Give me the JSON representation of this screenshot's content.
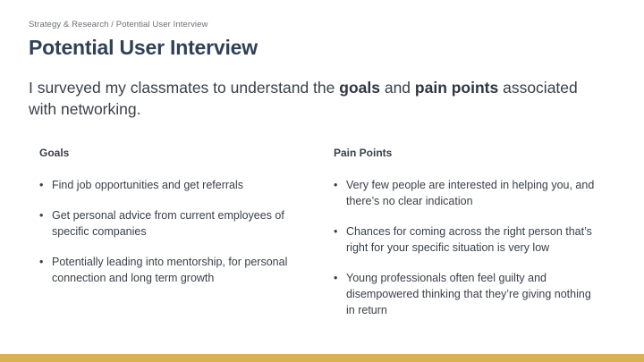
{
  "breadcrumb": "Strategy & Research / Potential User Interview",
  "title": "Potential User Interview",
  "intro": {
    "before": "I surveyed my classmates to understand the ",
    "goals_word": "goals",
    "middle": " and ",
    "pain_word": "pain points",
    "after": " associated with networking."
  },
  "goals": {
    "heading": "Goals",
    "items": [
      "Find job opportunities and get referrals",
      "Get personal advice from current employees of specific companies",
      "Potentially leading into mentorship, for personal connection and long term growth"
    ]
  },
  "pain_points": {
    "heading": "Pain Points",
    "items": [
      "Very few people are interested in helping you, and there’s no clear indication",
      "Chances for coming across the right person that’s right for your specific situation is very low",
      "Young professionals often feel guilty and disempowered thinking that they’re giving nothing in return"
    ]
  },
  "bullet_char": "•",
  "colors": {
    "title": "#2f4156",
    "footer_bar": "#deae57"
  }
}
